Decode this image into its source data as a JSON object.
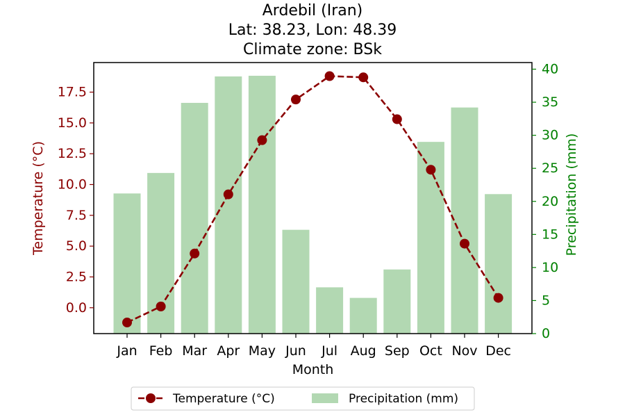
{
  "chart_data": {
    "type": "bar+line",
    "title": [
      "Ardebil (Iran)",
      "Lat: 38.23, Lon: 48.39",
      "Climate zone: BSk"
    ],
    "categories": [
      "Jan",
      "Feb",
      "Mar",
      "Apr",
      "May",
      "Jun",
      "Jul",
      "Aug",
      "Sep",
      "Oct",
      "Nov",
      "Dec"
    ],
    "xlabel": "Month",
    "left_axis": {
      "label": "Temperature (°C)",
      "ylim": [
        -2.1,
        19.9
      ],
      "ticks": [
        0.0,
        2.5,
        5.0,
        7.5,
        10.0,
        12.5,
        15.0,
        17.5
      ],
      "tick_labels": [
        "0.0",
        "2.5",
        "5.0",
        "7.5",
        "10.0",
        "12.5",
        "15.0",
        "17.5"
      ],
      "color": "#8b0000"
    },
    "right_axis": {
      "label": "Precipitation (mm)",
      "ylim": [
        0,
        41
      ],
      "ticks": [
        0,
        5,
        10,
        15,
        20,
        25,
        30,
        35,
        40
      ],
      "tick_labels": [
        "0",
        "5",
        "10",
        "15",
        "20",
        "25",
        "30",
        "35",
        "40"
      ],
      "color": "#008000"
    },
    "series": [
      {
        "name": "Temperature (°C)",
        "type": "line",
        "axis": "left",
        "color": "#8b0000",
        "marker": "circle",
        "linestyle": "dashed",
        "values": [
          -1.2,
          0.1,
          4.4,
          9.2,
          13.6,
          16.9,
          18.8,
          18.7,
          15.3,
          11.2,
          5.2,
          0.8
        ]
      },
      {
        "name": "Precipitation (mm)",
        "type": "bar",
        "axis": "right",
        "color": "#b2d8b2",
        "values": [
          21.2,
          24.3,
          34.9,
          38.9,
          39.0,
          15.7,
          7.0,
          5.4,
          9.7,
          29.0,
          34.2,
          21.1
        ]
      }
    ],
    "grid": false,
    "legend": {
      "placement": "bottom-center",
      "entries": [
        "Temperature (°C)",
        "Precipitation (mm)"
      ]
    }
  }
}
